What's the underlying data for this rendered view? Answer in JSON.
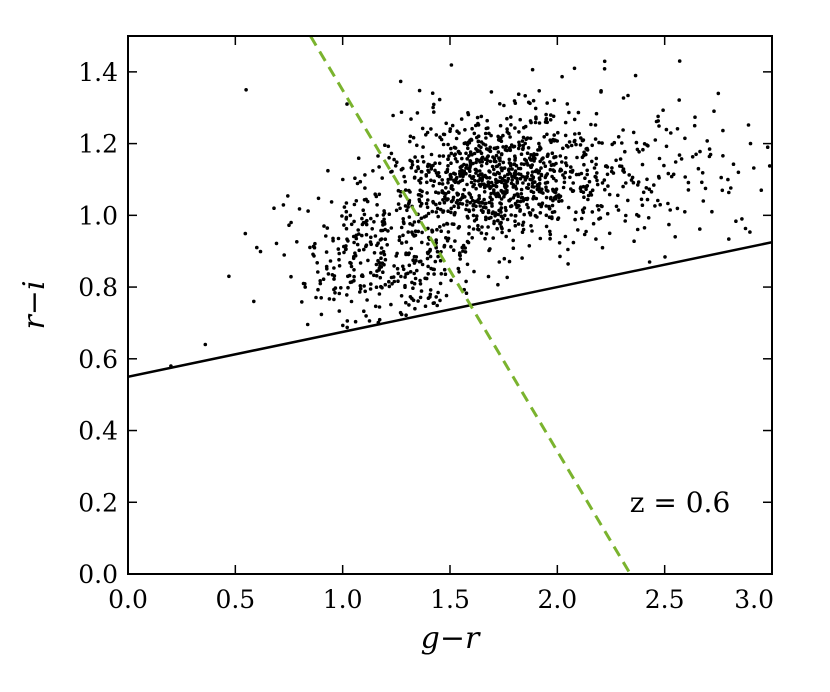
{
  "chart_data": {
    "type": "scatter",
    "xlabel": "g−r",
    "ylabel": "r−i",
    "xlim": [
      0.0,
      3.0
    ],
    "ylim": [
      0.0,
      1.5
    ],
    "xticks": [
      "0.0",
      "0.5",
      "1.0",
      "1.5",
      "2.0",
      "2.5",
      "3.0"
    ],
    "yticks": [
      "0.0",
      "0.2",
      "0.4",
      "0.6",
      "0.8",
      "1.0",
      "1.2",
      "1.4"
    ],
    "grid": false,
    "annotation": "z = 0.6",
    "cloud": {
      "count": 1500,
      "components": [
        {
          "weight": 0.55,
          "mean": [
            1.7,
            1.1
          ],
          "std": [
            0.25,
            0.085
          ]
        },
        {
          "weight": 0.25,
          "mean": [
            1.2,
            0.88
          ],
          "std": [
            0.22,
            0.09
          ]
        },
        {
          "weight": 0.2,
          "mean": [
            2.1,
            1.12
          ],
          "std": [
            0.4,
            0.12
          ]
        }
      ]
    },
    "points": [
      [
        0.2,
        0.58
      ],
      [
        0.36,
        0.64
      ],
      [
        0.47,
        0.83
      ],
      [
        0.55,
        1.35
      ],
      [
        0.6,
        0.91
      ],
      [
        0.68,
        1.02
      ],
      [
        0.76,
        0.98
      ],
      [
        0.9,
        0.77
      ],
      [
        1.02,
        1.31
      ],
      [
        2.08,
        1.41
      ],
      [
        2.43,
        0.87
      ],
      [
        2.57,
        1.43
      ],
      [
        2.64,
        1.25
      ],
      [
        2.75,
        1.34
      ],
      [
        2.9,
        1.2
      ],
      [
        2.95,
        1.07
      ],
      [
        2.98,
        1.19
      ],
      [
        2.86,
        0.99
      ],
      [
        2.68,
        1.04
      ],
      [
        2.72,
        1.01
      ]
    ],
    "lines": [
      {
        "style": "solid",
        "color": "#000000",
        "points": [
          [
            0.0,
            0.55
          ],
          [
            3.0,
            0.925
          ]
        ]
      },
      {
        "style": "dashed",
        "color": "#7ab32e",
        "points": [
          [
            0.85,
            1.5
          ],
          [
            2.34,
            0.0
          ]
        ]
      }
    ]
  }
}
